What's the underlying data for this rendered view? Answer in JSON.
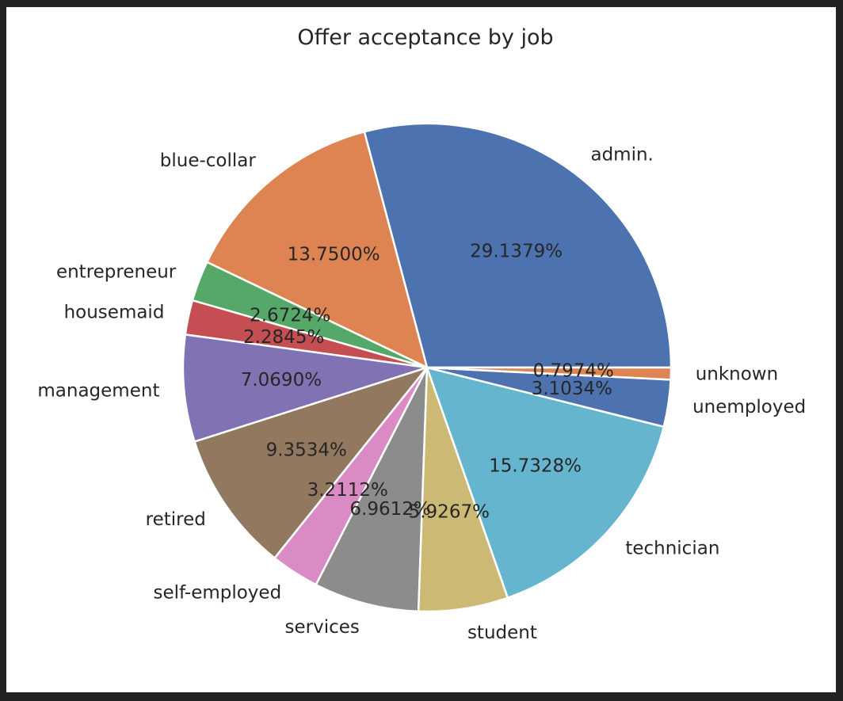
{
  "chart_data": {
    "type": "pie",
    "title": "Offer acceptance by job",
    "start_angle_deg": 0,
    "direction": "counterclockwise",
    "slices": [
      {
        "label": "admin.",
        "value": 29.1379,
        "pct_text": "29.1379%",
        "color": "#4c72b0"
      },
      {
        "label": "blue-collar",
        "value": 13.75,
        "pct_text": "13.7500%",
        "color": "#dd8452"
      },
      {
        "label": "entrepreneur",
        "value": 2.6724,
        "pct_text": "2.6724%",
        "color": "#55a868"
      },
      {
        "label": "housemaid",
        "value": 2.2845,
        "pct_text": "2.2845%",
        "color": "#c44e52"
      },
      {
        "label": "management",
        "value": 7.069,
        "pct_text": "7.0690%",
        "color": "#8172b3"
      },
      {
        "label": "retired",
        "value": 9.3534,
        "pct_text": "9.3534%",
        "color": "#937860"
      },
      {
        "label": "self-employed",
        "value": 3.2112,
        "pct_text": "3.2112%",
        "color": "#da8bc3"
      },
      {
        "label": "services",
        "value": 6.9612,
        "pct_text": "6.9612%",
        "color": "#8c8c8c"
      },
      {
        "label": "student",
        "value": 5.9267,
        "pct_text": "5.9267%",
        "color": "#ccb974"
      },
      {
        "label": "technician",
        "value": 15.7328,
        "pct_text": "15.7328%",
        "color": "#64b5cd"
      },
      {
        "label": "unemployed",
        "value": 3.1034,
        "pct_text": "3.1034%",
        "color": "#4c72b0"
      },
      {
        "label": "unknown",
        "value": 0.7974,
        "pct_text": "0.7974%",
        "color": "#dd8452"
      }
    ]
  }
}
